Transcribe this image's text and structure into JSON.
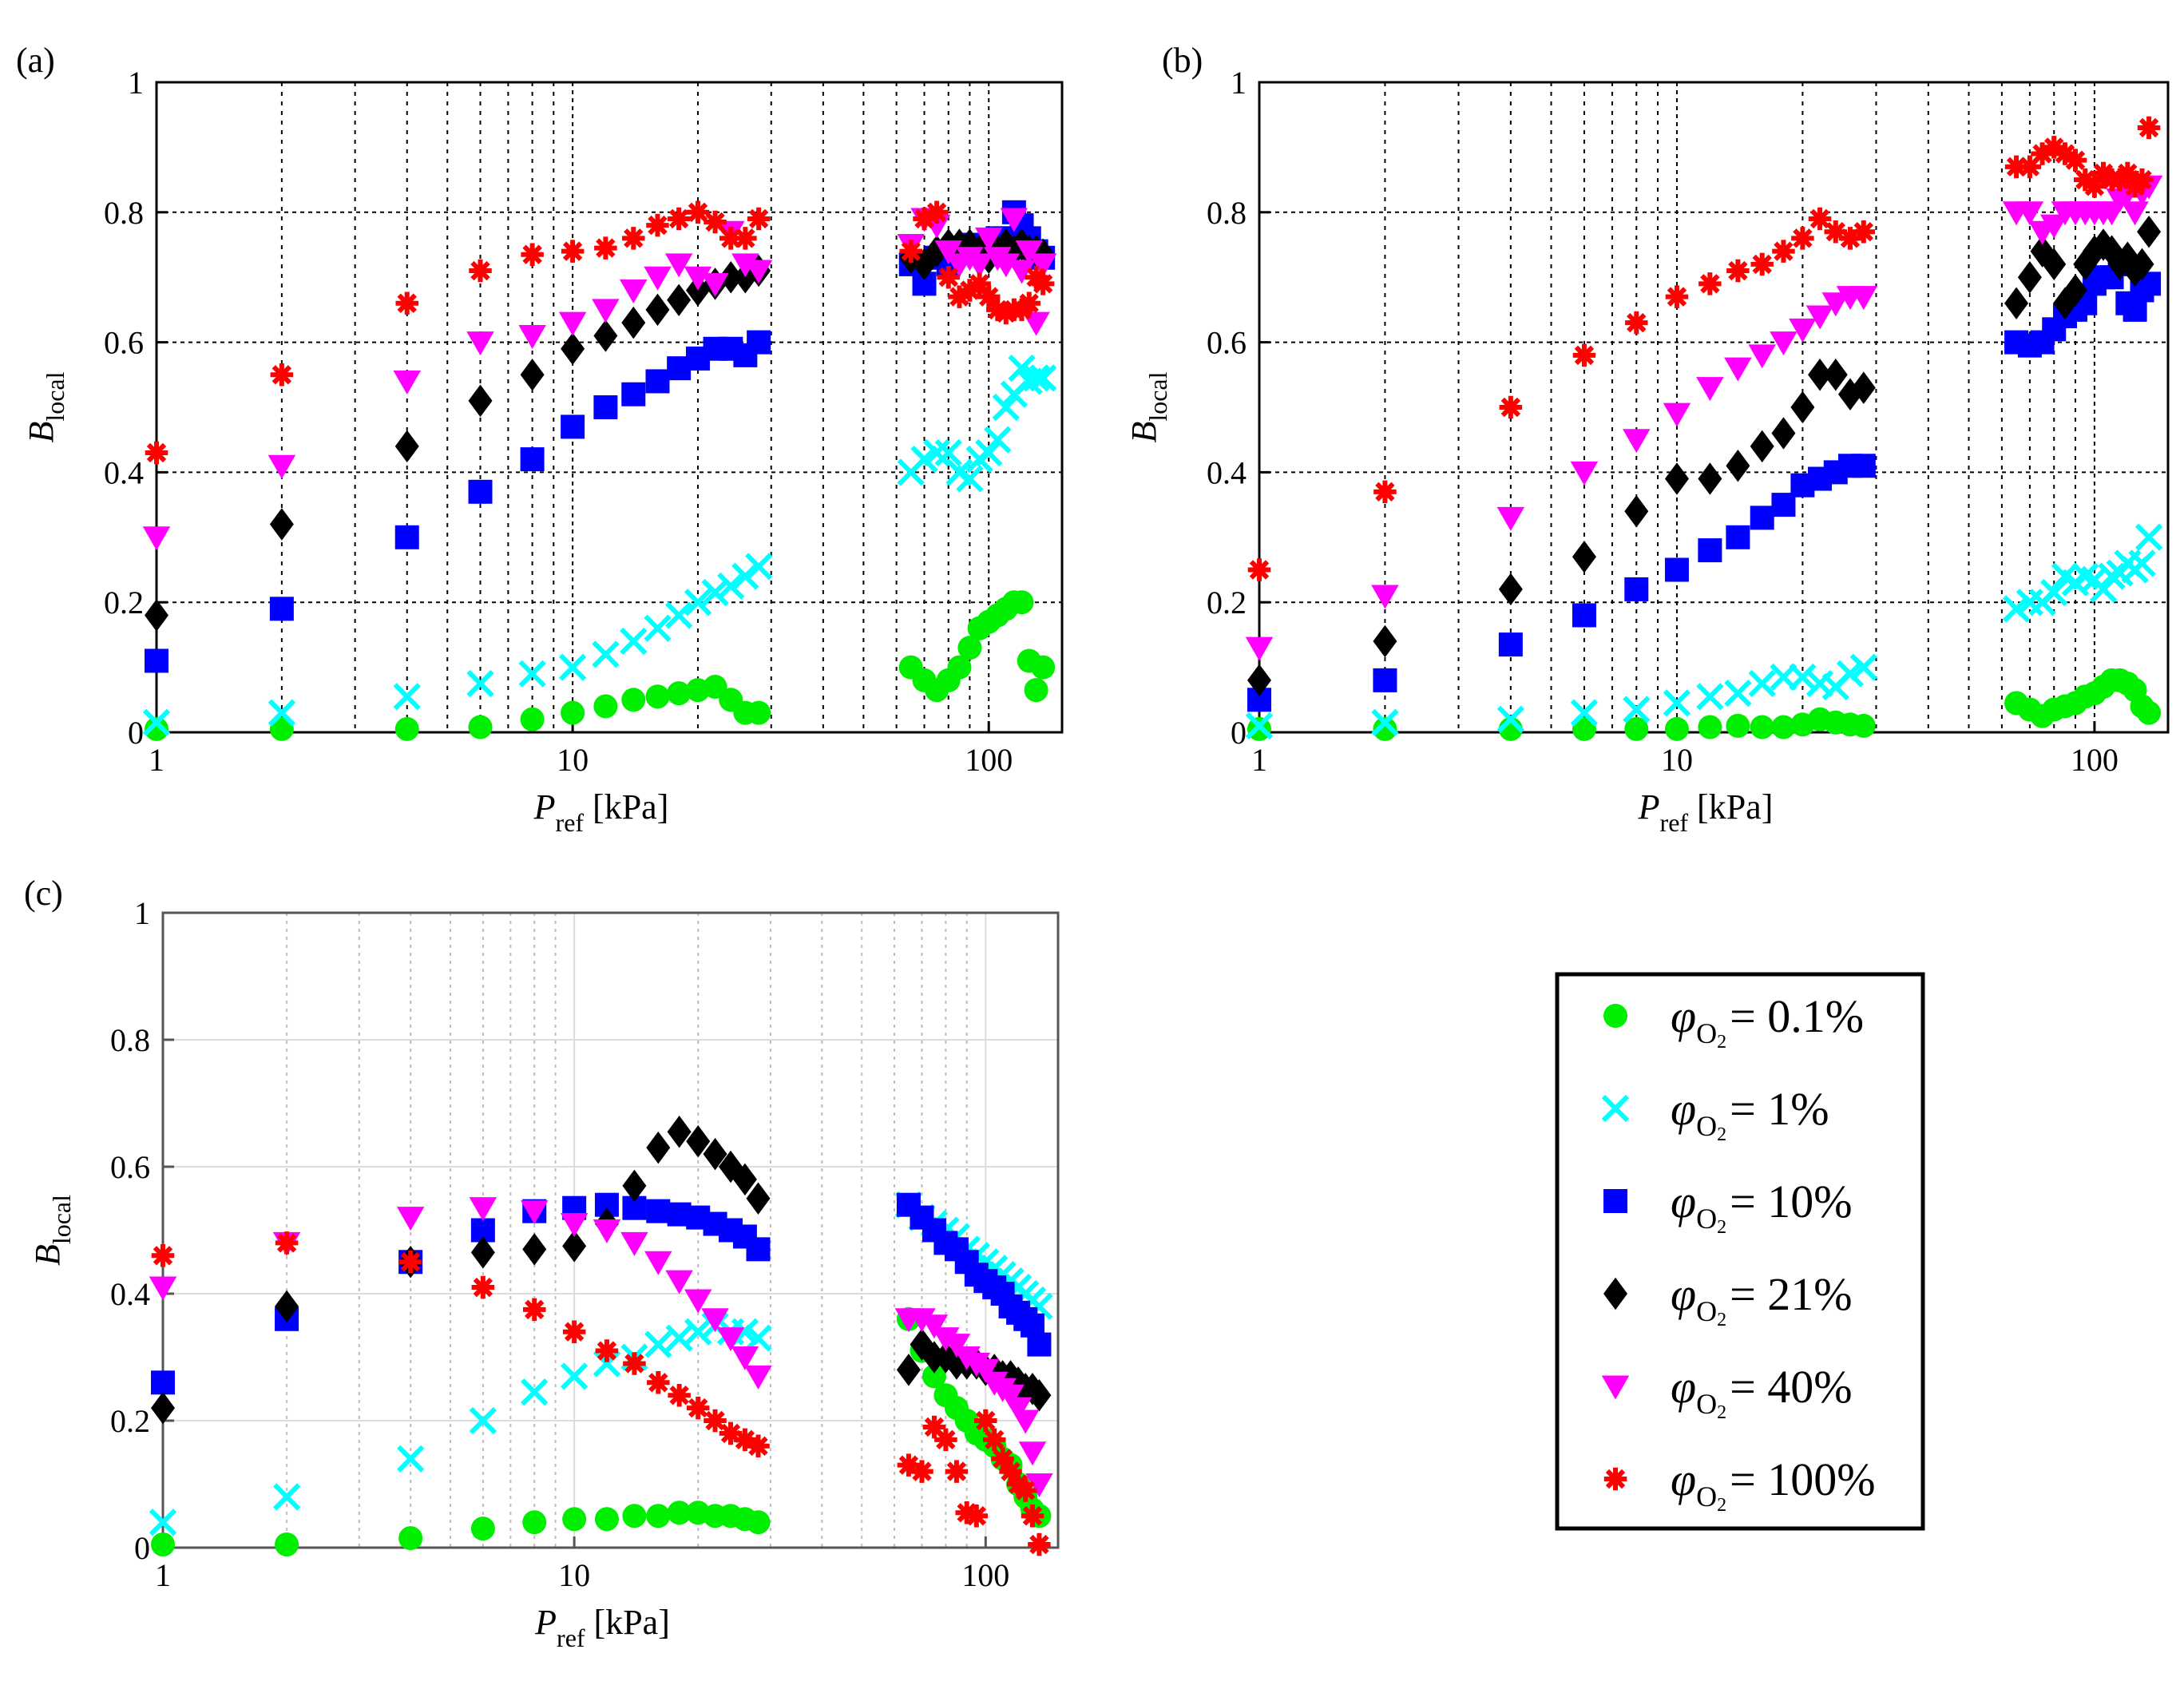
{
  "colors": {
    "phi_0_1": "#00ee00",
    "phi_1": "#00ffff",
    "phi_10": "#0000ff",
    "phi_21": "#000000",
    "phi_40": "#ff00ff",
    "phi_100": "#ff0000"
  },
  "legend": {
    "entries": [
      {
        "series": "phi_0_1",
        "marker": "circle",
        "symbol": "φ",
        "sub": "O",
        "subsub": "2",
        "eq": "=",
        "value": "0.1%"
      },
      {
        "series": "phi_1",
        "marker": "x",
        "symbol": "φ",
        "sub": "O",
        "subsub": "2",
        "eq": "=",
        "value": "1%"
      },
      {
        "series": "phi_10",
        "marker": "square",
        "symbol": "φ",
        "sub": "O",
        "subsub": "2",
        "eq": "=",
        "value": "10%"
      },
      {
        "series": "phi_21",
        "marker": "diamond",
        "symbol": "φ",
        "sub": "O",
        "subsub": "2",
        "eq": "=",
        "value": "21%"
      },
      {
        "series": "phi_40",
        "marker": "triangle-down",
        "symbol": "φ",
        "sub": "O",
        "subsub": "2",
        "eq": "=",
        "value": "40%"
      },
      {
        "series": "phi_100",
        "marker": "asterisk",
        "symbol": "φ",
        "sub": "O",
        "subsub": "2",
        "eq": "=",
        "value": "100%"
      }
    ]
  },
  "chart_data": [
    {
      "type": "scatter",
      "panel_label": "(a)",
      "xlabel": "P",
      "xlabel_sub": "ref",
      "xlabel_unit": " [kPa]",
      "ylabel": "B",
      "ylabel_sub": "local",
      "xscale": "log",
      "xlim": [
        1,
        150
      ],
      "ylim": [
        0,
        1
      ],
      "x_ticks": [
        1,
        10,
        100
      ],
      "x_tick_labels": [
        "1",
        "10",
        "100"
      ],
      "y_ticks": [
        0,
        0.2,
        0.4,
        0.6,
        0.8,
        1
      ],
      "y_tick_labels": [
        "0",
        "0.2",
        "0.4",
        "0.6",
        "0.8",
        "1"
      ],
      "grid": "major+minor dotted",
      "x_values": [
        1,
        2,
        4,
        6,
        8,
        10,
        12,
        14,
        16,
        18,
        20,
        22,
        24,
        26,
        28,
        65,
        70,
        75,
        80,
        85,
        90,
        95,
        100,
        105,
        110,
        115,
        120,
        125,
        130,
        135
      ],
      "series": [
        {
          "key": "phi_0_1",
          "marker": "circle",
          "values": [
            0.005,
            0.005,
            0.005,
            0.008,
            0.02,
            0.03,
            0.04,
            0.05,
            0.055,
            0.06,
            0.065,
            0.07,
            0.05,
            0.03,
            0.03,
            0.1,
            0.08,
            0.065,
            0.08,
            0.1,
            0.13,
            0.16,
            0.17,
            0.18,
            0.19,
            0.2,
            0.2,
            0.11,
            0.065,
            0.1
          ]
        },
        {
          "key": "phi_1",
          "marker": "x",
          "values": [
            0.015,
            0.03,
            0.055,
            0.075,
            0.09,
            0.1,
            0.12,
            0.14,
            0.16,
            0.18,
            0.2,
            0.215,
            0.225,
            0.24,
            0.255,
            0.4,
            0.42,
            0.43,
            0.43,
            0.4,
            0.39,
            0.42,
            0.43,
            0.45,
            0.5,
            0.52,
            0.56,
            0.54,
            0.545,
            0.545
          ]
        },
        {
          "key": "phi_10",
          "marker": "square",
          "values": [
            0.11,
            0.19,
            0.3,
            0.37,
            0.42,
            0.47,
            0.5,
            0.52,
            0.54,
            0.56,
            0.575,
            0.59,
            0.59,
            0.58,
            0.6,
            0.72,
            0.69,
            0.73,
            0.72,
            0.74,
            0.75,
            0.74,
            0.75,
            0.76,
            0.76,
            0.8,
            0.78,
            0.76,
            0.74,
            0.73
          ]
        },
        {
          "key": "phi_21",
          "marker": "diamond",
          "values": [
            0.18,
            0.32,
            0.44,
            0.51,
            0.55,
            0.59,
            0.61,
            0.63,
            0.65,
            0.665,
            0.68,
            0.69,
            0.7,
            0.7,
            0.71,
            0.73,
            0.72,
            0.74,
            0.75,
            0.75,
            0.75,
            0.74,
            0.73,
            0.74,
            0.75,
            0.74,
            0.75,
            0.74,
            0.74,
            0.735
          ]
        },
        {
          "key": "phi_40",
          "marker": "triangle-down",
          "values": [
            0.3,
            0.41,
            0.54,
            0.6,
            0.61,
            0.63,
            0.65,
            0.68,
            0.7,
            0.72,
            0.7,
            0.69,
            0.77,
            0.72,
            0.71,
            0.75,
            0.79,
            0.78,
            0.74,
            0.72,
            0.73,
            0.72,
            0.76,
            0.73,
            0.72,
            0.79,
            0.71,
            0.74,
            0.63,
            0.72
          ]
        },
        {
          "key": "phi_100",
          "marker": "asterisk",
          "values": [
            0.43,
            0.55,
            0.66,
            0.71,
            0.735,
            0.74,
            0.745,
            0.76,
            0.78,
            0.79,
            0.8,
            0.785,
            0.76,
            0.76,
            0.79,
            0.74,
            0.79,
            0.8,
            0.7,
            0.67,
            0.68,
            0.69,
            0.67,
            0.65,
            0.645,
            0.65,
            0.65,
            0.66,
            0.7,
            0.69
          ]
        }
      ]
    },
    {
      "type": "scatter",
      "panel_label": "(b)",
      "xlabel": "P",
      "xlabel_sub": "ref",
      "xlabel_unit": " [kPa]",
      "ylabel": "B",
      "ylabel_sub": "local",
      "xscale": "log",
      "xlim": [
        1,
        150
      ],
      "ylim": [
        0,
        1
      ],
      "x_ticks": [
        1,
        10,
        100
      ],
      "x_tick_labels": [
        "1",
        "10",
        "100"
      ],
      "y_ticks": [
        0,
        0.2,
        0.4,
        0.6,
        0.8,
        1
      ],
      "y_tick_labels": [
        "0",
        "0.2",
        "0.4",
        "0.6",
        "0.8",
        "1"
      ],
      "grid": "major+minor dotted",
      "x_values": [
        1,
        2,
        4,
        6,
        8,
        10,
        12,
        14,
        16,
        18,
        20,
        22,
        24,
        26,
        28,
        65,
        70,
        75,
        80,
        85,
        90,
        95,
        100,
        105,
        110,
        115,
        120,
        125,
        130,
        135
      ],
      "series": [
        {
          "key": "phi_0_1",
          "marker": "circle",
          "values": [
            0.005,
            0.005,
            0.005,
            0.005,
            0.005,
            0.005,
            0.008,
            0.01,
            0.008,
            0.008,
            0.012,
            0.02,
            0.015,
            0.012,
            0.01,
            0.045,
            0.035,
            0.025,
            0.035,
            0.04,
            0.045,
            0.055,
            0.06,
            0.07,
            0.08,
            0.08,
            0.075,
            0.065,
            0.04,
            0.03
          ]
        },
        {
          "key": "phi_1",
          "marker": "x",
          "values": [
            0.01,
            0.015,
            0.02,
            0.03,
            0.035,
            0.045,
            0.055,
            0.06,
            0.075,
            0.085,
            0.085,
            0.075,
            0.07,
            0.09,
            0.1,
            0.19,
            0.2,
            0.2,
            0.215,
            0.24,
            0.23,
            0.24,
            0.235,
            0.22,
            0.24,
            0.245,
            0.26,
            0.25,
            0.26,
            0.3
          ]
        },
        {
          "key": "phi_10",
          "marker": "square",
          "values": [
            0.05,
            0.08,
            0.135,
            0.18,
            0.22,
            0.25,
            0.28,
            0.3,
            0.33,
            0.35,
            0.38,
            0.39,
            0.4,
            0.41,
            0.41,
            0.6,
            0.595,
            0.6,
            0.62,
            0.64,
            0.65,
            0.66,
            0.69,
            0.7,
            0.7,
            0.72,
            0.66,
            0.65,
            0.68,
            0.69
          ]
        },
        {
          "key": "phi_21",
          "marker": "diamond",
          "values": [
            0.08,
            0.14,
            0.22,
            0.27,
            0.34,
            0.39,
            0.39,
            0.41,
            0.44,
            0.46,
            0.5,
            0.55,
            0.55,
            0.52,
            0.53,
            0.66,
            0.7,
            0.74,
            0.72,
            0.66,
            0.68,
            0.72,
            0.74,
            0.75,
            0.74,
            0.72,
            0.73,
            0.71,
            0.72,
            0.77
          ]
        },
        {
          "key": "phi_40",
          "marker": "triangle-down",
          "values": [
            0.13,
            0.21,
            0.33,
            0.4,
            0.45,
            0.49,
            0.53,
            0.56,
            0.58,
            0.6,
            0.62,
            0.64,
            0.66,
            0.67,
            0.67,
            0.8,
            0.8,
            0.77,
            0.78,
            0.8,
            0.8,
            0.8,
            0.8,
            0.8,
            0.8,
            0.82,
            0.83,
            0.8,
            0.83,
            0.84
          ]
        },
        {
          "key": "phi_100",
          "marker": "asterisk",
          "values": [
            0.25,
            0.37,
            0.5,
            0.58,
            0.63,
            0.67,
            0.69,
            0.71,
            0.72,
            0.74,
            0.76,
            0.79,
            0.77,
            0.76,
            0.77,
            0.87,
            0.87,
            0.89,
            0.9,
            0.89,
            0.88,
            0.85,
            0.84,
            0.86,
            0.85,
            0.85,
            0.86,
            0.84,
            0.85,
            0.93
          ]
        }
      ]
    },
    {
      "type": "scatter",
      "panel_label": "(c)",
      "xlabel": "P",
      "xlabel_sub": "ref",
      "xlabel_unit": " [kPa]",
      "ylabel": "B",
      "ylabel_sub": "local",
      "xscale": "log",
      "xlim": [
        1,
        150
      ],
      "ylim": [
        0,
        1
      ],
      "x_ticks": [
        1,
        10,
        100
      ],
      "x_tick_labels": [
        "1",
        "10",
        "100"
      ],
      "y_ticks": [
        0,
        0.2,
        0.4,
        0.6,
        0.8,
        1
      ],
      "y_tick_labels": [
        "0",
        "0.2",
        "0.4",
        "0.6",
        "0.8",
        "1"
      ],
      "grid": "light gray major + minor",
      "x_values": [
        1,
        2,
        4,
        6,
        8,
        10,
        12,
        14,
        16,
        18,
        20,
        22,
        24,
        26,
        28,
        65,
        70,
        75,
        80,
        85,
        90,
        95,
        100,
        105,
        110,
        115,
        120,
        125,
        130,
        135
      ],
      "series": [
        {
          "key": "phi_0_1",
          "marker": "circle",
          "values": [
            0.005,
            0.005,
            0.015,
            0.03,
            0.04,
            0.045,
            0.045,
            0.05,
            0.05,
            0.055,
            0.055,
            0.05,
            0.05,
            0.045,
            0.04,
            0.36,
            0.31,
            0.27,
            0.24,
            0.22,
            0.2,
            0.18,
            0.17,
            0.16,
            0.14,
            0.13,
            0.1,
            0.08,
            0.06,
            0.05
          ]
        },
        {
          "key": "phi_1",
          "marker": "x",
          "values": [
            0.04,
            0.08,
            0.14,
            0.2,
            0.245,
            0.27,
            0.29,
            0.3,
            0.32,
            0.33,
            0.34,
            0.35,
            0.34,
            0.34,
            0.33,
            0.54,
            0.52,
            0.51,
            0.5,
            0.49,
            0.47,
            0.46,
            0.45,
            0.44,
            0.43,
            0.42,
            0.41,
            0.4,
            0.39,
            0.38
          ]
        },
        {
          "key": "phi_10",
          "marker": "square",
          "values": [
            0.26,
            0.36,
            0.45,
            0.5,
            0.53,
            0.535,
            0.54,
            0.535,
            0.53,
            0.525,
            0.52,
            0.51,
            0.5,
            0.49,
            0.47,
            0.54,
            0.52,
            0.5,
            0.48,
            0.47,
            0.45,
            0.43,
            0.42,
            0.41,
            0.4,
            0.38,
            0.37,
            0.36,
            0.35,
            0.32
          ]
        },
        {
          "key": "phi_21",
          "marker": "diamond",
          "values": [
            0.22,
            0.38,
            0.45,
            0.465,
            0.47,
            0.475,
            0.51,
            0.57,
            0.63,
            0.655,
            0.64,
            0.62,
            0.6,
            0.58,
            0.55,
            0.28,
            0.32,
            0.3,
            0.3,
            0.29,
            0.29,
            0.29,
            0.28,
            0.28,
            0.27,
            0.27,
            0.26,
            0.25,
            0.25,
            0.24
          ]
        },
        {
          "key": "phi_40",
          "marker": "triangle-down",
          "values": [
            0.41,
            0.48,
            0.52,
            0.535,
            0.53,
            0.51,
            0.5,
            0.48,
            0.45,
            0.42,
            0.39,
            0.36,
            0.33,
            0.3,
            0.27,
            0.36,
            0.36,
            0.35,
            0.33,
            0.32,
            0.3,
            0.29,
            0.28,
            0.26,
            0.25,
            0.24,
            0.22,
            0.2,
            0.15,
            0.1
          ]
        },
        {
          "key": "phi_100",
          "marker": "asterisk",
          "values": [
            0.46,
            0.48,
            0.45,
            0.41,
            0.375,
            0.34,
            0.31,
            0.29,
            0.26,
            0.24,
            0.22,
            0.2,
            0.18,
            0.17,
            0.16,
            0.13,
            0.12,
            0.19,
            0.17,
            0.12,
            0.055,
            0.05,
            0.2,
            0.17,
            0.14,
            0.12,
            0.1,
            0.09,
            0.05,
            0.005
          ]
        }
      ]
    }
  ]
}
